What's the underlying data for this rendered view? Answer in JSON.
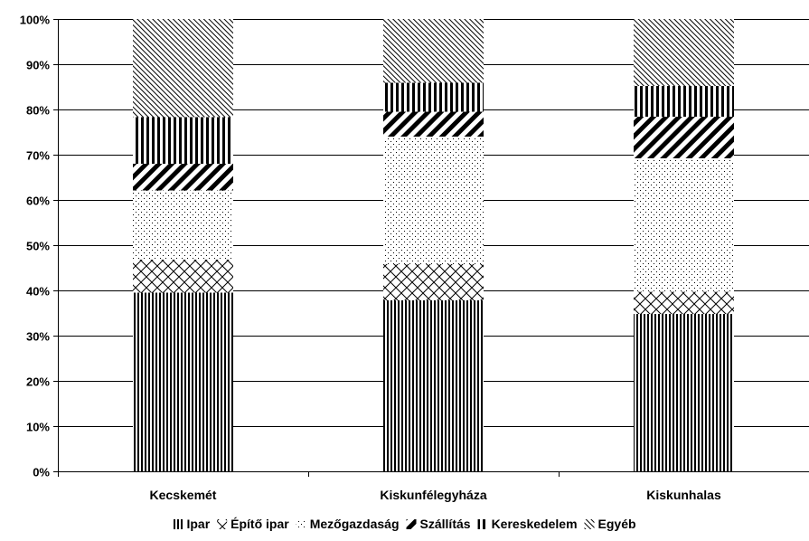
{
  "chart_data": {
    "type": "bar",
    "stacked": true,
    "percent": true,
    "categories": [
      "Kecskemét",
      "Kiskunfélegyháza",
      "Kiskunhalas"
    ],
    "ylim": [
      0,
      100
    ],
    "ytick_step": 10,
    "ytick_suffix": "%",
    "grid": true,
    "legend_position": "bottom",
    "series": [
      {
        "name": "Ipar",
        "values": [
          39.5,
          37.8,
          34.8
        ],
        "pattern": "vertical-lines"
      },
      {
        "name": "Építő ipar",
        "values": [
          7.3,
          8.0,
          4.9
        ],
        "pattern": "crosshatch"
      },
      {
        "name": "Mezőgazdaság",
        "values": [
          15.3,
          28.2,
          29.5
        ],
        "pattern": "dots"
      },
      {
        "name": "Szállítás",
        "values": [
          5.9,
          5.5,
          9.2
        ],
        "pattern": "wide-diagonal"
      },
      {
        "name": "Kereskedelem",
        "values": [
          10.3,
          6.4,
          6.8
        ],
        "pattern": "wide-vertical"
      },
      {
        "name": "Egyéb",
        "values": [
          21.7,
          14.1,
          14.8
        ],
        "pattern": "fine-diagonal"
      }
    ]
  }
}
